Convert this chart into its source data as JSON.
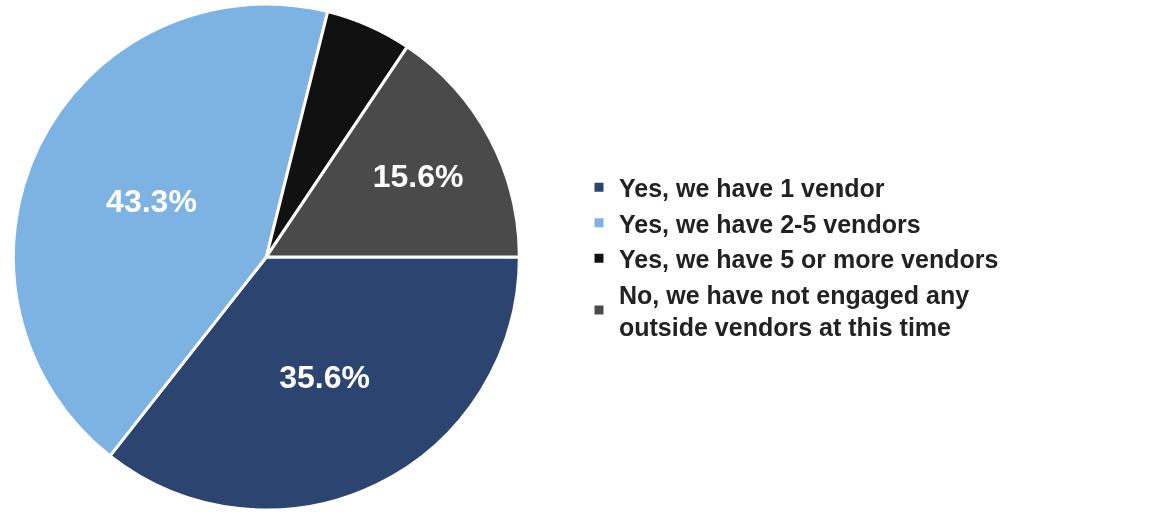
{
  "chart_data": {
    "type": "pie",
    "categories": [
      "Yes, we have 1 vendor",
      "Yes, we have 2-5 vendors",
      "Yes, we have 5 or more vendors",
      "No, we have not engaged any outside vendors at this time"
    ],
    "values": [
      35.6,
      43.3,
      5.5,
      15.6
    ],
    "colors": [
      "#2c4470",
      "#7cb3e2",
      "#111111",
      "#4a4a4a"
    ],
    "value_labels": [
      "35.6%",
      "43.3%",
      null,
      "15.6%"
    ],
    "legend": "right"
  }
}
